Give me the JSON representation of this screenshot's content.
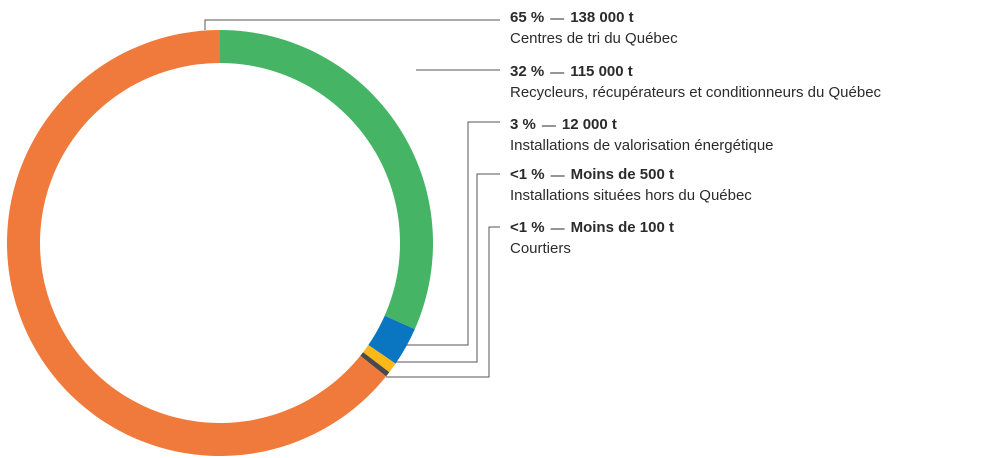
{
  "chart_data": {
    "type": "donut",
    "categories": [
      "Centres de tri du Québec",
      "Recycleurs, récupérateurs et conditionneurs du Québec",
      "Installations de valorisation énergétique",
      "Installations situées hors du Québec",
      "Courtiers"
    ],
    "values": [
      65,
      32,
      3,
      0.8,
      0.4
    ],
    "value_labels": [
      "65 %",
      "32 %",
      "3 %",
      "<1 %",
      "<1 %"
    ],
    "tonnage_labels": [
      "138 000 t",
      "115 000 t",
      "12 000 t",
      "Moins de 500 t",
      "Moins de 100 t"
    ],
    "colors": [
      "#f07a3c",
      "#45b465",
      "#0a76c2",
      "#fbb81a",
      "#4a4a4a"
    ]
  }
}
